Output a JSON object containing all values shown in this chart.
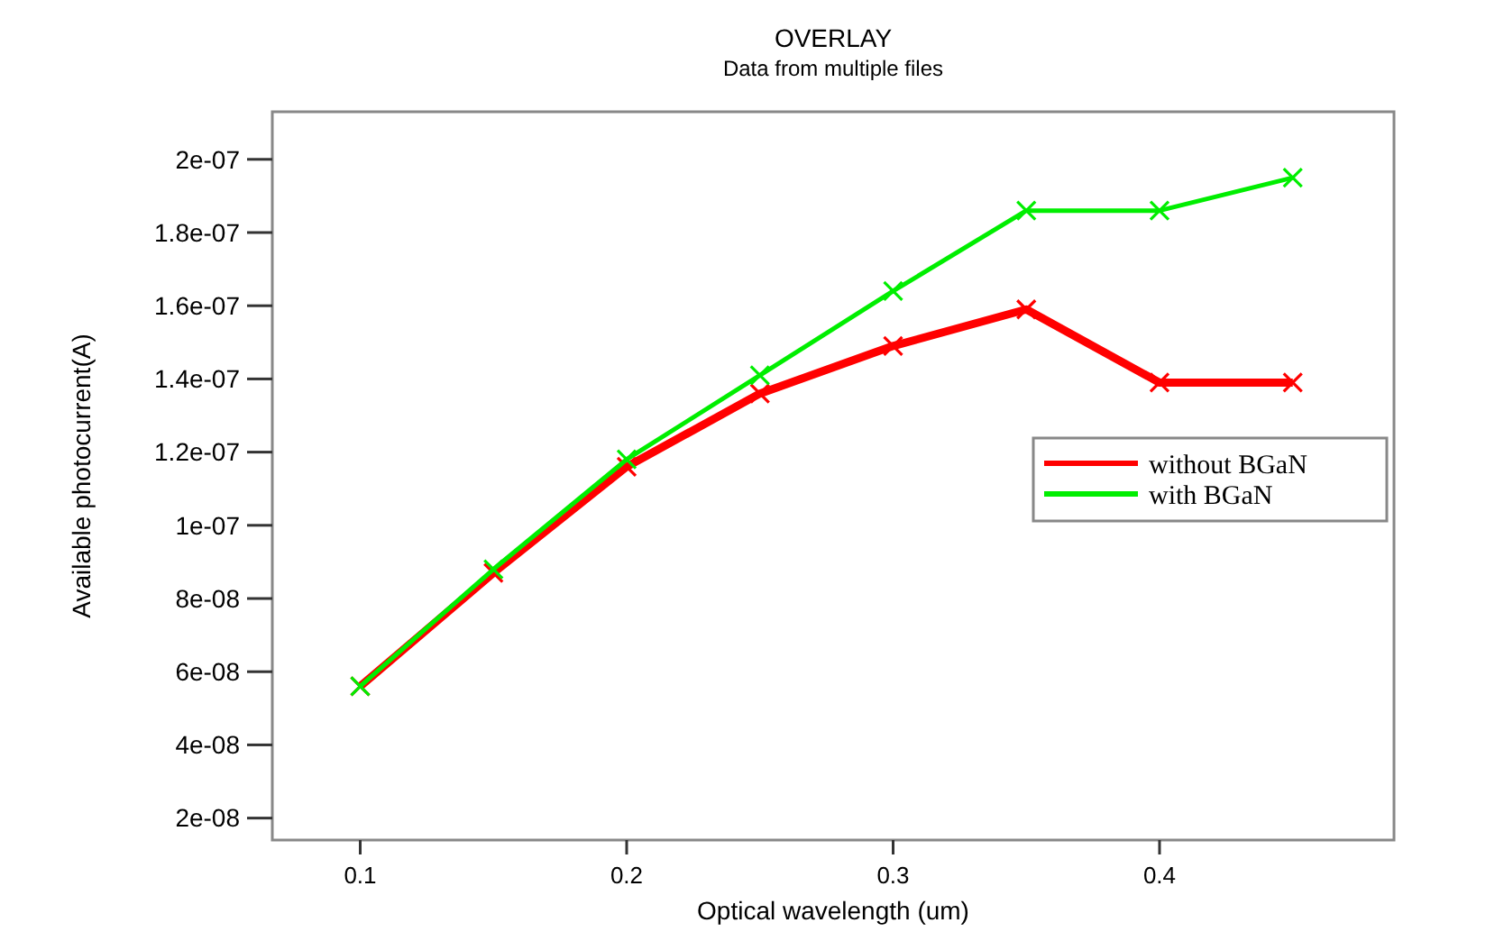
{
  "chart_data": {
    "type": "line",
    "title": "OVERLAY",
    "subtitle": "Data from multiple files",
    "xlabel": "Optical wavelength (um)",
    "ylabel": "Available photocurrent(A)",
    "x": [
      0.1,
      0.15,
      0.2,
      0.25,
      0.3,
      0.35,
      0.4,
      0.45
    ],
    "series": [
      {
        "name": "without BGaN",
        "color": "#ff0000",
        "values": [
          5.6e-08,
          8.7e-08,
          1.16e-07,
          1.36e-07,
          1.49e-07,
          1.59e-07,
          1.39e-07,
          1.39e-07
        ]
      },
      {
        "name": "with BGaN",
        "color": "#00ee00",
        "values": [
          5.6e-08,
          8.8e-08,
          1.18e-07,
          1.41e-07,
          1.64e-07,
          1.86e-07,
          1.86e-07,
          1.95e-07
        ]
      }
    ],
    "xlim": [
      0.067,
      0.488
    ],
    "xticks": [
      0.1,
      0.2,
      0.3,
      0.4
    ],
    "ylim": [
      1.4e-08,
      2.13e-07
    ],
    "yticks": [
      {
        "value": 2e-08,
        "label": "2e-08"
      },
      {
        "value": 4e-08,
        "label": "4e-08"
      },
      {
        "value": 6e-08,
        "label": "6e-08"
      },
      {
        "value": 8e-08,
        "label": "8e-08"
      },
      {
        "value": 1e-07,
        "label": "1e-07"
      },
      {
        "value": 1.2e-07,
        "label": "1.2e-07"
      },
      {
        "value": 1.4e-07,
        "label": "1.4e-07"
      },
      {
        "value": 1.6e-07,
        "label": "1.6e-07"
      },
      {
        "value": 1.8e-07,
        "label": "1.8e-07"
      },
      {
        "value": 2e-07,
        "label": "2e-07"
      }
    ],
    "grid": false,
    "legend": "right",
    "marker": "cross",
    "line_style": "solid"
  }
}
